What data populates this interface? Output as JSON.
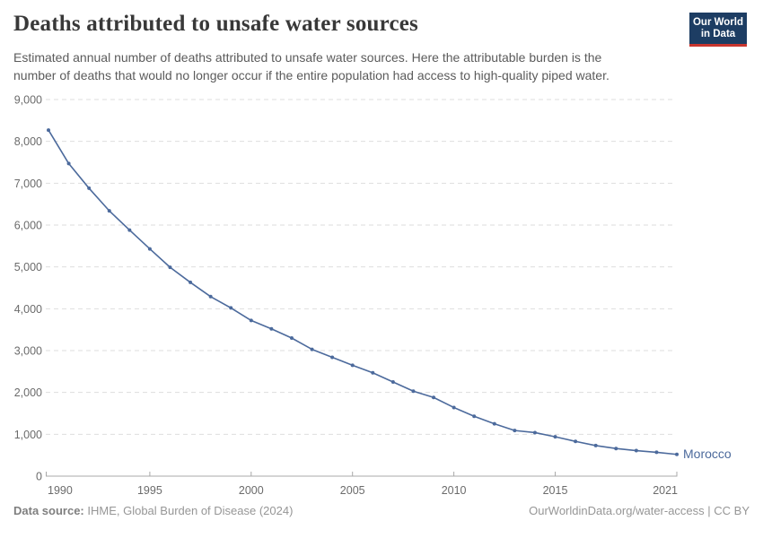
{
  "header": {
    "title": "Deaths attributed to unsafe water sources",
    "subtitle": "Estimated annual number of deaths attributed to unsafe water sources. Here the attributable burden is the number of deaths that would no longer occur if the entire population had access to high-quality piped water.",
    "logo": {
      "line1": "Our World",
      "line2": "in Data"
    }
  },
  "chart_data": {
    "type": "line",
    "title": "Deaths attributed to unsafe water sources",
    "xlabel": "",
    "ylabel": "",
    "xlim": [
      1990,
      2021
    ],
    "ylim": [
      0,
      9000
    ],
    "grid": "horizontal-dashed",
    "legend_position": "end-of-line",
    "x_ticks": [
      1990,
      1995,
      2000,
      2005,
      2010,
      2015,
      2021
    ],
    "x_tick_labels": [
      "1990",
      "1995",
      "2000",
      "2005",
      "2010",
      "2015",
      "2021"
    ],
    "y_ticks": [
      0,
      1000,
      2000,
      3000,
      4000,
      5000,
      6000,
      7000,
      8000,
      9000
    ],
    "y_tick_labels": [
      "0",
      "1,000",
      "2,000",
      "3,000",
      "4,000",
      "5,000",
      "6,000",
      "7,000",
      "8,000",
      "9,000"
    ],
    "series": [
      {
        "name": "Morocco",
        "color": "#4c6a9c",
        "x": [
          1990,
          1991,
          1992,
          1993,
          1994,
          1995,
          1996,
          1997,
          1998,
          1999,
          2000,
          2001,
          2002,
          2003,
          2004,
          2005,
          2006,
          2007,
          2008,
          2009,
          2010,
          2011,
          2012,
          2013,
          2014,
          2015,
          2016,
          2017,
          2018,
          2019,
          2020,
          2021
        ],
        "values": [
          8270,
          7470,
          6880,
          6340,
          5880,
          5430,
          4990,
          4630,
          4290,
          4020,
          3720,
          3520,
          3300,
          3030,
          2840,
          2650,
          2470,
          2250,
          2030,
          1880,
          1640,
          1430,
          1250,
          1090,
          1040,
          940,
          830,
          730,
          660,
          610,
          570,
          520
        ]
      }
    ]
  },
  "footer": {
    "source_label": "Data source:",
    "source_value": "IHME, Global Burden of Disease (2024)",
    "attribution": "OurWorldinData.org/water-access | CC BY"
  },
  "colors": {
    "line": "#4c6a9c",
    "gridline": "#dedede",
    "axis": "#a8a8a8",
    "tick_text": "#6b6b6b",
    "logo_bg": "#1d3d63",
    "logo_bar": "#c9352e"
  }
}
